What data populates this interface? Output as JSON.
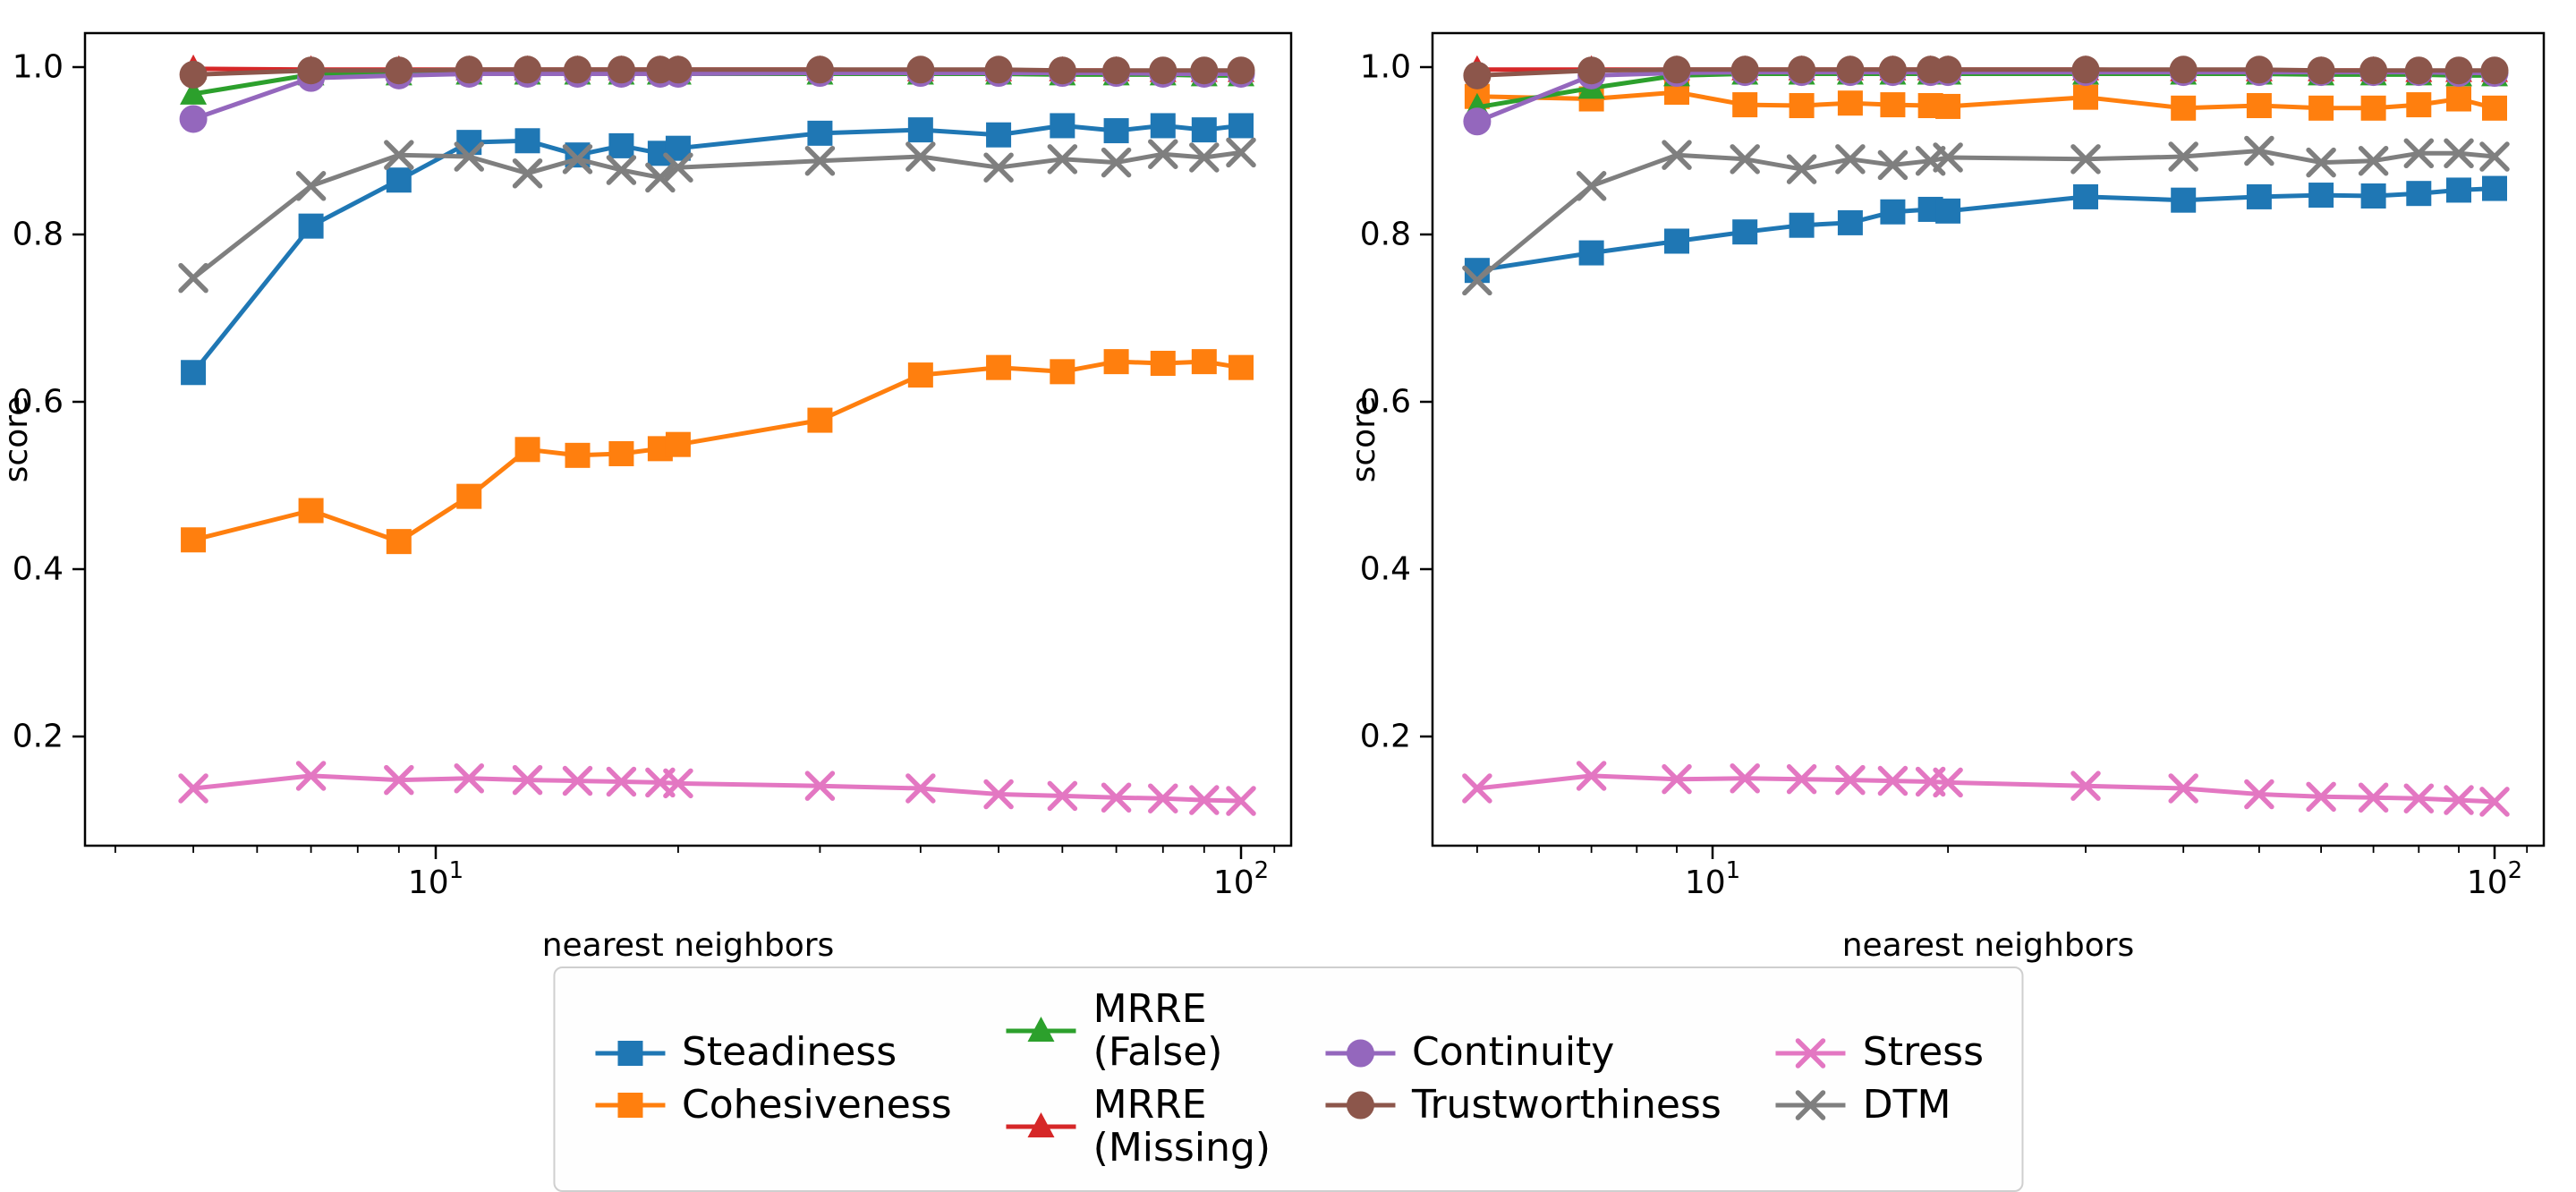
{
  "figure": {
    "background": "#ffffff",
    "xlabel": "nearest neighbors",
    "ylabel": "score"
  },
  "series_meta": [
    {
      "id": "steadiness",
      "label": "Steadiness",
      "color": "#1f77b4",
      "marker": "square"
    },
    {
      "id": "cohesiveness",
      "label": "Cohesiveness",
      "color": "#ff7f0e",
      "marker": "square"
    },
    {
      "id": "mrre-false",
      "label": "MRRE (False)",
      "color": "#2ca02c",
      "marker": "triangle"
    },
    {
      "id": "mrre-missing",
      "label": "MRRE (Missing)",
      "color": "#d62728",
      "marker": "triangle"
    },
    {
      "id": "continuity",
      "label": "Continuity",
      "color": "#9467bd",
      "marker": "circle"
    },
    {
      "id": "trustworthiness",
      "label": "Trustworthiness",
      "color": "#8c564b",
      "marker": "circle"
    },
    {
      "id": "stress",
      "label": "Stress",
      "color": "#e377c2",
      "marker": "x"
    },
    {
      "id": "dtm",
      "label": "DTM",
      "color": "#7f7f7f",
      "marker": "x"
    }
  ],
  "legend": {
    "columns": 4,
    "rows": 2,
    "order": "column-major",
    "position": "bottom-center"
  },
  "chart_data": [
    {
      "type": "line",
      "panel": "left",
      "x_scale": "log",
      "xlabel": "nearest neighbors",
      "ylabel": "score",
      "x": [
        5,
        7,
        9,
        11,
        13,
        15,
        17,
        19,
        20,
        30,
        40,
        50,
        60,
        70,
        80,
        90,
        100
      ],
      "xlim": [
        3.7,
        115
      ],
      "ylim": [
        0.07,
        1.04
      ],
      "x_ticks": [
        {
          "base": "10",
          "sup": "1",
          "value": 10
        },
        {
          "base": "10",
          "sup": "2",
          "value": 100
        }
      ],
      "y_ticks": [
        {
          "label": "1.0",
          "value": 1.0
        },
        {
          "label": "0.8",
          "value": 0.8
        },
        {
          "label": "0.6",
          "value": 0.6
        },
        {
          "label": "0.4",
          "value": 0.4
        },
        {
          "label": "0.2",
          "value": 0.2
        }
      ],
      "grid": false,
      "series": [
        {
          "name": "Steadiness",
          "values": [
            0.635,
            0.81,
            0.865,
            0.91,
            0.912,
            0.895,
            0.906,
            0.897,
            0.903,
            0.921,
            0.925,
            0.919,
            0.93,
            0.924,
            0.93,
            0.925,
            0.93
          ]
        },
        {
          "name": "Cohesiveness",
          "values": [
            0.435,
            0.47,
            0.433,
            0.487,
            0.543,
            0.536,
            0.538,
            0.544,
            0.549,
            0.578,
            0.632,
            0.641,
            0.636,
            0.648,
            0.646,
            0.648,
            0.641
          ]
        },
        {
          "name": "MRRE (False)",
          "values": [
            0.968,
            0.991,
            0.991,
            0.992,
            0.992,
            0.992,
            0.992,
            0.992,
            0.992,
            0.992,
            0.992,
            0.992,
            0.991,
            0.991,
            0.991,
            0.99,
            0.99
          ]
        },
        {
          "name": "MRRE (Missing)",
          "values": [
            0.998,
            0.997,
            0.997,
            0.997,
            0.997,
            0.997,
            0.997,
            0.997,
            0.997,
            0.997,
            0.996,
            0.996,
            0.996,
            0.996,
            0.995,
            0.995,
            0.995
          ]
        },
        {
          "name": "Continuity",
          "values": [
            0.938,
            0.987,
            0.99,
            0.992,
            0.992,
            0.992,
            0.992,
            0.992,
            0.992,
            0.993,
            0.993,
            0.993,
            0.993,
            0.993,
            0.992,
            0.992,
            0.992
          ]
        },
        {
          "name": "Trustworthiness",
          "values": [
            0.991,
            0.996,
            0.996,
            0.997,
            0.997,
            0.997,
            0.997,
            0.997,
            0.997,
            0.997,
            0.997,
            0.997,
            0.996,
            0.996,
            0.996,
            0.996,
            0.996
          ]
        },
        {
          "name": "Stress",
          "values": [
            0.138,
            0.153,
            0.148,
            0.15,
            0.148,
            0.147,
            0.146,
            0.145,
            0.144,
            0.141,
            0.138,
            0.131,
            0.129,
            0.127,
            0.126,
            0.124,
            0.123
          ]
        },
        {
          "name": "DTM",
          "values": [
            0.748,
            0.858,
            0.895,
            0.893,
            0.873,
            0.89,
            0.877,
            0.868,
            0.88,
            0.888,
            0.893,
            0.88,
            0.89,
            0.886,
            0.896,
            0.892,
            0.898
          ]
        }
      ]
    },
    {
      "type": "line",
      "panel": "right",
      "x_scale": "log",
      "xlabel": "nearest neighbors",
      "ylabel": "score",
      "x": [
        5,
        7,
        9,
        11,
        13,
        15,
        17,
        19,
        20,
        30,
        40,
        50,
        60,
        70,
        80,
        90,
        100
      ],
      "xlim": [
        4.4,
        116
      ],
      "ylim": [
        0.07,
        1.04
      ],
      "x_ticks": [
        {
          "base": "10",
          "sup": "1",
          "value": 10
        },
        {
          "base": "10",
          "sup": "2",
          "value": 100
        }
      ],
      "y_ticks": [
        {
          "label": "1.0",
          "value": 1.0
        },
        {
          "label": "0.8",
          "value": 0.8
        },
        {
          "label": "0.6",
          "value": 0.6
        },
        {
          "label": "0.4",
          "value": 0.4
        },
        {
          "label": "0.2",
          "value": 0.2
        }
      ],
      "grid": false,
      "series": [
        {
          "name": "Steadiness",
          "values": [
            0.757,
            0.778,
            0.792,
            0.803,
            0.811,
            0.814,
            0.827,
            0.83,
            0.828,
            0.845,
            0.841,
            0.845,
            0.847,
            0.846,
            0.849,
            0.853,
            0.855
          ]
        },
        {
          "name": "Cohesiveness",
          "values": [
            0.965,
            0.962,
            0.97,
            0.955,
            0.954,
            0.957,
            0.955,
            0.954,
            0.953,
            0.964,
            0.951,
            0.954,
            0.951,
            0.951,
            0.955,
            0.962,
            0.951
          ]
        },
        {
          "name": "MRRE (False)",
          "values": [
            0.952,
            0.975,
            0.99,
            0.992,
            0.992,
            0.992,
            0.992,
            0.992,
            0.992,
            0.992,
            0.992,
            0.992,
            0.991,
            0.991,
            0.991,
            0.99,
            0.99
          ]
        },
        {
          "name": "MRRE (Missing)",
          "values": [
            0.997,
            0.997,
            0.997,
            0.997,
            0.997,
            0.997,
            0.997,
            0.997,
            0.997,
            0.997,
            0.996,
            0.996,
            0.996,
            0.996,
            0.995,
            0.995,
            0.995
          ]
        },
        {
          "name": "Continuity",
          "values": [
            0.935,
            0.99,
            0.993,
            0.994,
            0.994,
            0.994,
            0.994,
            0.994,
            0.994,
            0.994,
            0.994,
            0.994,
            0.994,
            0.994,
            0.994,
            0.993,
            0.993
          ]
        },
        {
          "name": "Trustworthiness",
          "values": [
            0.99,
            0.996,
            0.997,
            0.997,
            0.997,
            0.997,
            0.997,
            0.997,
            0.997,
            0.997,
            0.997,
            0.997,
            0.996,
            0.996,
            0.996,
            0.996,
            0.996
          ]
        },
        {
          "name": "Stress",
          "values": [
            0.138,
            0.153,
            0.149,
            0.15,
            0.149,
            0.148,
            0.147,
            0.146,
            0.145,
            0.141,
            0.138,
            0.131,
            0.128,
            0.127,
            0.126,
            0.124,
            0.122
          ]
        },
        {
          "name": "DTM",
          "values": [
            0.745,
            0.858,
            0.895,
            0.89,
            0.878,
            0.89,
            0.883,
            0.888,
            0.892,
            0.89,
            0.893,
            0.9,
            0.886,
            0.888,
            0.897,
            0.897,
            0.893
          ]
        }
      ]
    }
  ]
}
